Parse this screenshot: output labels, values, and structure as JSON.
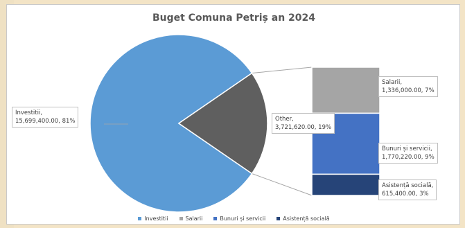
{
  "chart_data": {
    "type": "pie",
    "subtype": "pie-of-pie",
    "title": "Buget Comuna Petriș an 2024",
    "main_slices": [
      {
        "name": "Investitii",
        "value": 15699400.0,
        "percent": 81,
        "color": "#5b9bd5",
        "label": [
          "Investitii,",
          "15,699,400.00, 81%"
        ]
      },
      {
        "name": "Other",
        "value": 3721620.0,
        "percent": 19,
        "color": "#5f5f5f",
        "label": [
          "Other,",
          "3,721,620.00, 19%"
        ]
      }
    ],
    "secondary_stack": [
      {
        "name": "Salarii",
        "value": 1336000.0,
        "percent": 7,
        "color": "#a5a5a5",
        "label": [
          "Salarii,",
          "1,336,000.00, 7%"
        ]
      },
      {
        "name": "Bunuri și servicii",
        "value": 1770220.0,
        "percent": 9,
        "color": "#4472c4",
        "label": [
          "Bunuri și servicii,",
          "1,770,220.00, 9%"
        ]
      },
      {
        "name": "Asistență socială",
        "value": 615400.0,
        "percent": 3,
        "color": "#264478",
        "label": [
          "Asistență socială,",
          "615,400.00, 3%"
        ]
      }
    ],
    "legend": [
      {
        "name": "Investitii",
        "color": "#5b9bd5"
      },
      {
        "name": "Salarii",
        "color": "#a5a5a5"
      },
      {
        "name": "Bunuri și servicii",
        "color": "#4472c4"
      },
      {
        "name": "Asistență socială",
        "color": "#264478"
      }
    ],
    "legend_position": "bottom"
  }
}
